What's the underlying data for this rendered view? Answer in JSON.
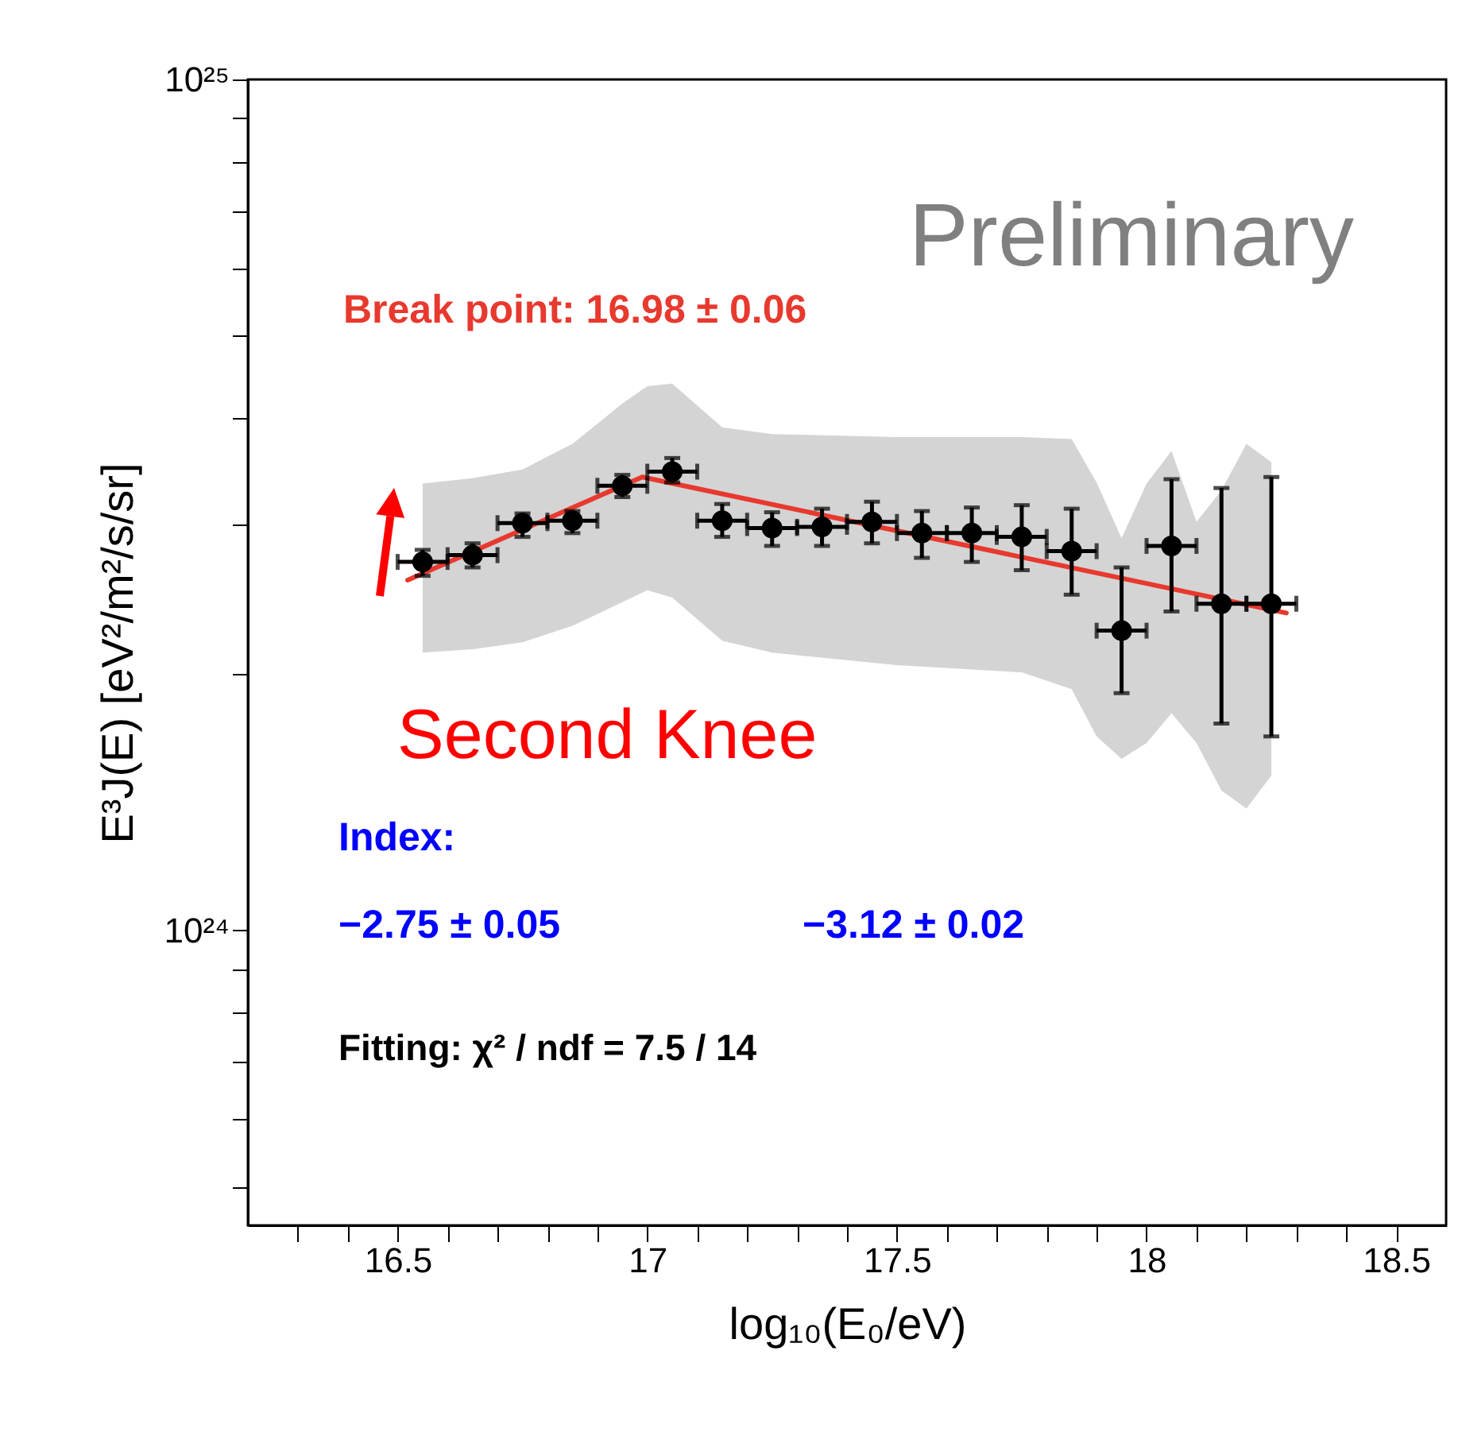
{
  "chart_data": {
    "type": "scatter",
    "xlabel": "log₁₀(E₀/eV)",
    "ylabel": "E³J(E) [eV²/m²/s/sr]",
    "log": "y",
    "xlim": [
      16.2,
      18.6
    ],
    "ylim": [
      4.5e+23,
      1e+25
    ],
    "xticks": [
      {
        "value": 16.3,
        "label": null
      },
      {
        "value": 16.4,
        "label": null
      },
      16.5,
      {
        "value": 16.6,
        "label": null
      },
      {
        "value": 16.7,
        "label": null
      },
      {
        "value": 16.8,
        "label": null
      },
      {
        "value": 16.9,
        "label": null
      },
      17,
      {
        "value": 17.1,
        "label": null
      },
      {
        "value": 17.2,
        "label": null
      },
      {
        "value": 17.3,
        "label": null
      },
      {
        "value": 17.4,
        "label": null
      },
      17.5,
      {
        "value": 17.6,
        "label": null
      },
      {
        "value": 17.7,
        "label": null
      },
      {
        "value": 17.8,
        "label": null
      },
      {
        "value": 17.9,
        "label": null
      },
      18,
      {
        "value": 18.1,
        "label": null
      },
      {
        "value": 18.2,
        "label": null
      },
      {
        "value": 18.3,
        "label": null
      },
      {
        "value": 18.4,
        "label": null
      },
      18.5
    ],
    "yticks": [
      {
        "value": 5e+23,
        "label": null
      },
      {
        "value": 6e+23,
        "label": null
      },
      {
        "value": 7e+23,
        "label": null
      },
      {
        "value": 8e+23,
        "label": null
      },
      {
        "value": 9e+23,
        "label": null
      },
      {
        "value": 1e+24,
        "label": "10²⁴"
      },
      {
        "value": 2e+24,
        "label": null
      },
      {
        "value": 3e+24,
        "label": null
      },
      {
        "value": 4e+24,
        "label": null
      },
      {
        "value": 5e+24,
        "label": null
      },
      {
        "value": 6e+24,
        "label": null
      },
      {
        "value": 7e+24,
        "label": null
      },
      {
        "value": 8e+24,
        "label": null
      },
      {
        "value": 9e+24,
        "label": null
      },
      {
        "value": 1e+25,
        "label": "10²⁵"
      }
    ],
    "series": [
      {
        "type": "area",
        "color": "#d4d4d4",
        "x": [
          16.55,
          16.65,
          16.75,
          16.85,
          16.95,
          17.0,
          17.05,
          17.15,
          17.25,
          17.5,
          17.75,
          17.85,
          17.9,
          17.95,
          18.0,
          18.05,
          18.1,
          18.15,
          18.2,
          18.25
        ],
        "values": [
          null,
          null,
          null,
          null,
          null,
          null,
          null,
          null,
          null,
          null,
          null,
          null,
          null,
          null,
          null,
          null,
          null,
          null,
          null,
          null
        ],
        "lower": [
          2.12e+24,
          2.14e+24,
          2.18e+24,
          2.28e+24,
          2.43e+24,
          2.51e+24,
          2.46e+24,
          2.19e+24,
          2.12e+24,
          2.05e+24,
          2.01e+24,
          1.92e+24,
          1.69e+24,
          1.59e+24,
          1.66e+24,
          1.8e+24,
          1.66e+24,
          1.46e+24,
          1.39e+24,
          1.52e+24
        ],
        "upper": [
          3.35e+24,
          3.4e+24,
          3.48e+24,
          3.73e+24,
          4.16e+24,
          4.36e+24,
          4.39e+24,
          3.9e+24,
          3.83e+24,
          3.8e+24,
          3.8e+24,
          3.78e+24,
          3.36e+24,
          2.89e+24,
          3.35e+24,
          3.66e+24,
          3.02e+24,
          3.29e+24,
          3.73e+24,
          3.55e+24
        ]
      },
      {
        "type": "line",
        "color": "#e8392e",
        "x": [
          16.52,
          16.99,
          18.28
        ],
        "values": [
          2.58e+24,
          3.41e+24,
          2.36e+24
        ]
      },
      {
        "color": "#000000",
        "marker": "circle",
        "x": [
          16.55,
          16.65,
          16.75,
          16.85,
          16.95,
          17.05,
          17.15,
          17.25,
          17.35,
          17.45,
          17.55,
          17.65,
          17.75,
          17.85,
          17.95,
          18.05,
          18.15,
          18.25
        ],
        "values": [
          2.71e+24,
          2.76e+24,
          3.01e+24,
          3.03e+24,
          3.33e+24,
          3.46e+24,
          3.03e+24,
          2.97e+24,
          2.98e+24,
          3.02e+24,
          2.93e+24,
          2.93e+24,
          2.9e+24,
          2.79e+24,
          2.25e+24,
          2.83e+24,
          2.42e+24,
          2.42e+24
        ],
        "errors": [
          [
            2.61e+24,
            2.8e+24
          ],
          [
            2.67e+24,
            2.85e+24
          ],
          [
            2.9e+24,
            3.09e+24
          ],
          [
            2.93e+24,
            3.11e+24
          ],
          [
            3.23e+24,
            3.43e+24
          ],
          [
            3.36e+24,
            3.59e+24
          ],
          [
            2.9e+24,
            3.17e+24
          ],
          [
            2.83e+24,
            3.1e+24
          ],
          [
            2.83e+24,
            3.13e+24
          ],
          [
            2.85e+24,
            3.19e+24
          ],
          [
            2.74e+24,
            3.11e+24
          ],
          [
            2.71e+24,
            3.14e+24
          ],
          [
            2.65e+24,
            3.16e+24
          ],
          [
            2.48e+24,
            3.13e+24
          ],
          [
            1.9e+24,
            2.67e+24
          ],
          [
            2.37e+24,
            3.39e+24
          ],
          [
            1.75e+24,
            3.31e+24
          ],
          [
            1.69e+24,
            3.41e+24
          ]
        ],
        "xerrors": [
          0.05,
          0.05,
          0.05,
          0.05,
          0.05,
          0.05,
          0.05,
          0.05,
          0.05,
          0.05,
          0.05,
          0.05,
          0.05,
          0.05,
          0.05,
          0.05,
          0.05,
          0.05
        ]
      }
    ],
    "annotations": [
      "Preliminary",
      "Break point:  16.98 ±   0.06",
      "Second Knee",
      "Index:",
      "−2.75 ± 0.05",
      "−3.12 ± 0.02",
      "Fitting: χ² / ndf = 7.5 / 14"
    ]
  }
}
